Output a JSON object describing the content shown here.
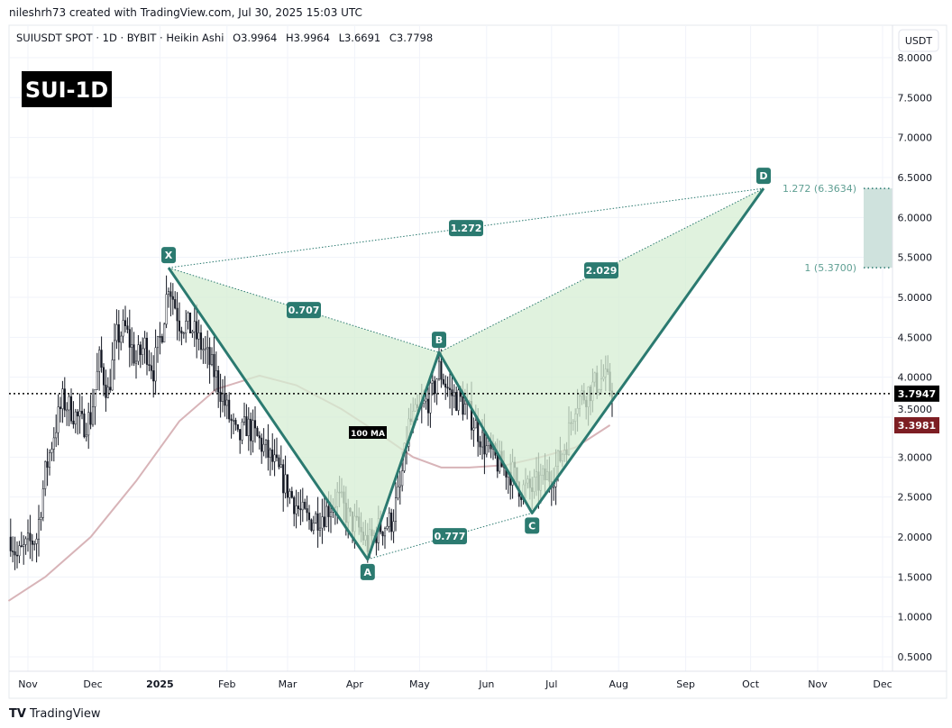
{
  "header": {
    "credit": "nileshrh73 created with TradingView.com, Jul 30, 2025 15:03 UTC"
  },
  "legend": {
    "symbol": "SUIUSDT SPOT · 1D · BYBIT · Heikin Ashi",
    "open": "O3.9964",
    "high": "H3.9964",
    "low": "L3.6691",
    "close": "C3.7798"
  },
  "title_badge": "SUI-1D",
  "currency_button": "USDT",
  "footer_logo": "TradingView",
  "colors": {
    "pattern_line": "#2b7a70",
    "pattern_fill": "#d6eed3",
    "label_bg": "#2b7a70",
    "ma": "#d8b4b8",
    "candle": "#131722",
    "last_price": "#000000",
    "ma_price": "#7d1e23",
    "fib_box": "#cfe2dd",
    "fib_text": "#5f9f93"
  },
  "chart_data": {
    "type": "candlestick",
    "title": "",
    "y_ticks": [
      "8.0000",
      "7.5000",
      "7.0000",
      "6.5000",
      "6.0000",
      "5.5000",
      "5.0000",
      "4.5000",
      "4.0000",
      "3.5000",
      "3.0000",
      "2.5000",
      "2.0000",
      "1.5000",
      "1.0000",
      "0.5000"
    ],
    "ylim": [
      0.5,
      8.0
    ],
    "x_ticks": [
      {
        "label": "Nov",
        "date": "2024-11-01"
      },
      {
        "label": "Dec",
        "date": "2024-12-01"
      },
      {
        "label": "2025",
        "date": "2025-01-01"
      },
      {
        "label": "Feb",
        "date": "2025-02-01"
      },
      {
        "label": "Mar",
        "date": "2025-03-01"
      },
      {
        "label": "Apr",
        "date": "2025-04-01"
      },
      {
        "label": "May",
        "date": "2025-05-01"
      },
      {
        "label": "Jun",
        "date": "2025-06-01"
      },
      {
        "label": "Jul",
        "date": "2025-07-01"
      },
      {
        "label": "Aug",
        "date": "2025-08-01"
      },
      {
        "label": "Sep",
        "date": "2025-09-01"
      },
      {
        "label": "Oct",
        "date": "2025-10-01"
      },
      {
        "label": "Nov",
        "date": "2025-11-01"
      },
      {
        "label": "Dec",
        "date": "2025-12-01"
      }
    ],
    "xlim": [
      "2024-10-19",
      "2025-12-28"
    ],
    "grid": true,
    "price_path": [
      [
        "2024-10-24",
        2.0
      ],
      [
        "2024-10-27",
        1.75
      ],
      [
        "2024-11-01",
        1.9
      ],
      [
        "2024-11-05",
        2.0
      ],
      [
        "2024-11-09",
        2.8
      ],
      [
        "2024-11-13",
        3.3
      ],
      [
        "2024-11-17",
        3.7
      ],
      [
        "2024-11-21",
        3.6
      ],
      [
        "2024-11-26",
        3.4
      ],
      [
        "2024-11-30",
        3.5
      ],
      [
        "2024-12-04",
        4.2
      ],
      [
        "2024-12-08",
        3.8
      ],
      [
        "2024-12-12",
        4.5
      ],
      [
        "2024-12-16",
        4.6
      ],
      [
        "2024-12-21",
        4.2
      ],
      [
        "2024-12-25",
        4.4
      ],
      [
        "2024-12-29",
        4.1
      ],
      [
        "2025-01-02",
        4.6
      ],
      [
        "2025-01-05",
        5.2
      ],
      [
        "2025-01-10",
        4.7
      ],
      [
        "2025-01-16",
        4.6
      ],
      [
        "2025-01-22",
        4.3
      ],
      [
        "2025-01-27",
        4.0
      ],
      [
        "2025-02-02",
        3.5
      ],
      [
        "2025-02-06",
        3.2
      ],
      [
        "2025-02-10",
        3.4
      ],
      [
        "2025-02-16",
        3.2
      ],
      [
        "2025-02-23",
        2.9
      ],
      [
        "2025-03-01",
        2.6
      ],
      [
        "2025-03-07",
        2.3
      ],
      [
        "2025-03-11",
        2.2
      ],
      [
        "2025-03-18",
        2.3
      ],
      [
        "2025-03-24",
        2.5
      ],
      [
        "2025-03-30",
        2.2
      ],
      [
        "2025-04-03",
        2.1
      ],
      [
        "2025-04-07",
        1.9
      ],
      [
        "2025-04-12",
        2.1
      ],
      [
        "2025-04-18",
        2.2
      ],
      [
        "2025-04-22",
        2.6
      ],
      [
        "2025-04-26",
        3.4
      ],
      [
        "2025-05-02",
        3.6
      ],
      [
        "2025-05-07",
        3.8
      ],
      [
        "2025-05-10",
        4.1
      ],
      [
        "2025-05-15",
        3.8
      ],
      [
        "2025-05-20",
        3.7
      ],
      [
        "2025-05-25",
        3.5
      ],
      [
        "2025-06-01",
        3.1
      ],
      [
        "2025-06-07",
        2.9
      ],
      [
        "2025-06-13",
        2.8
      ],
      [
        "2025-06-17",
        2.6
      ],
      [
        "2025-06-22",
        2.6
      ],
      [
        "2025-06-26",
        2.7
      ],
      [
        "2025-07-02",
        2.8
      ],
      [
        "2025-07-08",
        3.2
      ],
      [
        "2025-07-12",
        3.7
      ],
      [
        "2025-07-17",
        3.8
      ],
      [
        "2025-07-21",
        3.9
      ],
      [
        "2025-07-25",
        4.0
      ],
      [
        "2025-07-30",
        3.78
      ]
    ],
    "ma": {
      "label": "100 MA",
      "last_value": "3.3981",
      "points": [
        [
          "2024-10-23",
          1.2
        ],
        [
          "2024-11-09",
          1.5
        ],
        [
          "2024-11-30",
          2.0
        ],
        [
          "2024-12-21",
          2.7
        ],
        [
          "2025-01-10",
          3.45
        ],
        [
          "2025-01-27",
          3.85
        ],
        [
          "2025-02-16",
          4.02
        ],
        [
          "2025-03-05",
          3.9
        ],
        [
          "2025-03-26",
          3.6
        ],
        [
          "2025-04-12",
          3.3
        ],
        [
          "2025-04-28",
          3.0
        ],
        [
          "2025-05-11",
          2.87
        ],
        [
          "2025-05-24",
          2.87
        ],
        [
          "2025-06-10",
          2.9
        ],
        [
          "2025-06-26",
          3.0
        ],
        [
          "2025-07-12",
          3.12
        ],
        [
          "2025-07-28",
          3.4
        ]
      ]
    },
    "last_price": "3.7947",
    "last_price_value": 3.7947,
    "harmonic_pattern": {
      "points": [
        {
          "label": "X",
          "date": "2025-01-05",
          "price": 5.37
        },
        {
          "label": "A",
          "date": "2025-04-07",
          "price": 1.72
        },
        {
          "label": "B",
          "date": "2025-05-10",
          "price": 4.31
        },
        {
          "label": "C",
          "date": "2025-06-22",
          "price": 2.3
        },
        {
          "label": "D",
          "date": "2025-10-07",
          "price": 6.3634
        }
      ],
      "ratios": [
        {
          "from": "X",
          "to": "B",
          "label": "0.707"
        },
        {
          "from": "X",
          "to": "D",
          "label": "1.272"
        },
        {
          "from": "B",
          "to": "D",
          "label": "2.029"
        },
        {
          "from": "A",
          "to": "C",
          "label": "0.777"
        }
      ]
    },
    "fib_zone": [
      {
        "label": "1.272 (6.3634)",
        "value": 6.3634
      },
      {
        "label": "1 (5.3700)",
        "value": 5.37
      }
    ]
  }
}
